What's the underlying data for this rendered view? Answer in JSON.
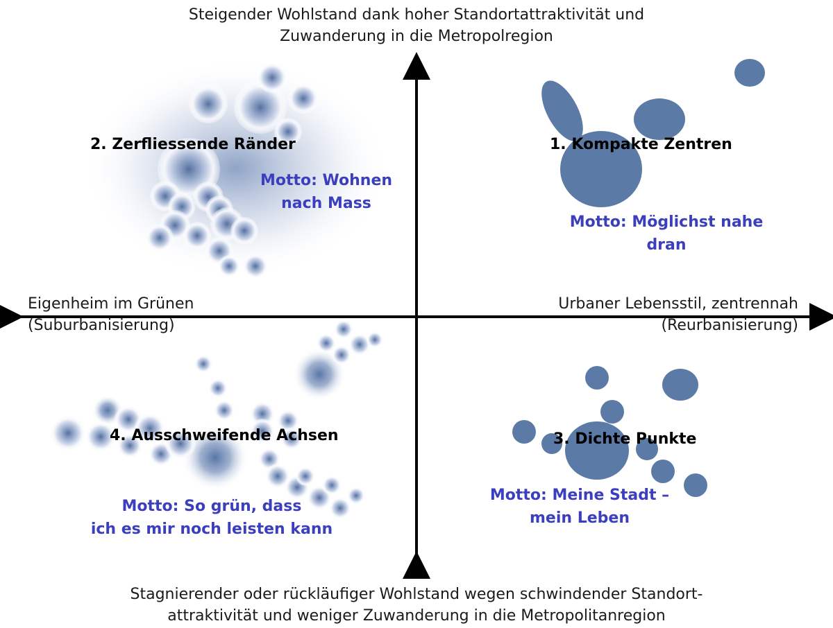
{
  "axes": {
    "top": [
      "Steigender Wohlstand dank hoher Standortattraktivität und",
      "Zuwanderung in die Metropolregion"
    ],
    "bottom": [
      "Stagnierender oder rückläufiger Wohlstand wegen schwindender Standort-",
      "attraktivität und weniger Zuwanderung in die Metropolitanregion"
    ],
    "left": [
      "Eigenheim im Grünen",
      "(Suburbanisierung)"
    ],
    "right": [
      "Urbaner Lebensstil, zentrennah",
      "(Reurbanisierung)"
    ]
  },
  "quadrants": {
    "q1": {
      "title": "1. Kompakte Zentren",
      "motto": [
        "Motto: Möglichst nahe",
        "dran"
      ]
    },
    "q2": {
      "title": "2. Zerfliessende Ränder",
      "motto": [
        "Motto: Wohnen",
        "nach Mass"
      ]
    },
    "q3": {
      "title": "3. Dichte Punkte",
      "motto": [
        "Motto: Meine Stadt –",
        "mein Leben"
      ]
    },
    "q4": {
      "title": "4. Ausschweifende Achsen",
      "motto": [
        "Motto: So grün, dass",
        "ich es mir noch leisten kann"
      ]
    }
  },
  "colors": {
    "solid_blob": "#5b7aa6",
    "fuzzy_blob": "#5876a8",
    "motto_text": "#3b3fbd",
    "axis": "#000000"
  }
}
